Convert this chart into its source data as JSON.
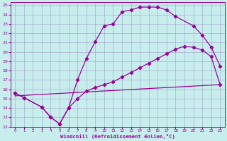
{
  "xlabel": "Windchill (Refroidissement éolien,°C)",
  "xlim": [
    -0.5,
    23.5
  ],
  "ylim": [
    12,
    25.3
  ],
  "xticks": [
    0,
    1,
    2,
    3,
    4,
    5,
    6,
    7,
    8,
    9,
    10,
    11,
    12,
    13,
    14,
    15,
    16,
    17,
    18,
    19,
    20,
    21,
    22,
    23
  ],
  "yticks": [
    12,
    13,
    14,
    15,
    16,
    17,
    18,
    19,
    20,
    21,
    22,
    23,
    24,
    25
  ],
  "bg_color": "#c8eded",
  "grid_color": "#a0a0c8",
  "line_color": "#990099",
  "curve1_x": [
    0,
    1,
    3,
    4,
    5,
    6,
    7,
    8,
    9,
    10,
    11,
    12,
    13,
    14,
    15,
    16,
    17,
    18,
    20,
    21,
    22,
    23
  ],
  "curve1_y": [
    15.6,
    15.1,
    14.1,
    13.0,
    12.3,
    14.0,
    17.0,
    19.3,
    21.1,
    22.8,
    23.0,
    24.3,
    24.5,
    24.8,
    24.8,
    24.8,
    24.5,
    23.8,
    22.8,
    21.8,
    20.5,
    18.5
  ],
  "curve2_x": [
    0,
    1,
    3,
    4,
    5,
    6,
    7,
    8,
    9,
    10,
    11,
    12,
    13,
    14,
    15,
    16,
    17,
    18,
    19,
    20,
    21,
    22,
    23
  ],
  "curve2_y": [
    15.6,
    15.1,
    14.1,
    13.0,
    12.3,
    14.0,
    15.0,
    15.8,
    16.2,
    16.5,
    16.8,
    17.3,
    17.8,
    18.3,
    18.8,
    19.3,
    19.8,
    20.3,
    20.6,
    20.5,
    20.2,
    19.5,
    16.5
  ],
  "curve3_x": [
    0,
    23
  ],
  "curve3_y": [
    15.3,
    16.5
  ],
  "marker": "D",
  "markersize": 2.2,
  "linewidth": 0.9
}
